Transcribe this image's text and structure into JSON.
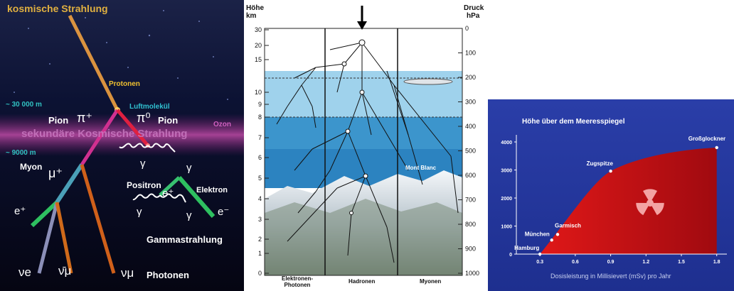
{
  "cosmic": {
    "title": "kosmische Strahlung",
    "protonen": "Protonen",
    "alt_30000": "~ 30 000 m",
    "luftmolekuel": "Luftmolekül",
    "ozon": "Ozon",
    "sekundaer": "sekundäre Kosmische Strahlung",
    "pion_plus": "Pion",
    "pi_plus_sym": "π⁺",
    "pi_zero_sym": "π⁰",
    "pion_zero": "Pion",
    "alt_9000": "~ 9000 m",
    "myon": "Myon",
    "mu_plus": "μ⁺",
    "gamma1": "γ",
    "gamma2": "γ",
    "gamma3": "γ",
    "gamma4": "γ",
    "positron": "Positron",
    "elektron": "Elektron",
    "e_plus1": "e⁺",
    "e_minus": "e⁻",
    "e_plus2": "e⁺",
    "gammastrahlung": "Gammastrahlung",
    "nu_e": "νe",
    "nu_mu_bar": "ν̄μ",
    "nu_mu": "νμ",
    "photonen": "Photonen"
  },
  "shower": {
    "hoehe_label": "Höhe",
    "km_label": "km",
    "druck_label": "Druck",
    "hpa_label": "hPa",
    "km_ticks": [
      "30",
      "20",
      "15",
      "10",
      "9",
      "8",
      "7",
      "6",
      "5",
      "4",
      "3",
      "2",
      "1",
      "0"
    ],
    "hpa_ticks": [
      "0",
      "100",
      "200",
      "300",
      "400",
      "500",
      "600",
      "700",
      "800",
      "900",
      "1000"
    ],
    "mont_blanc": "Mont Blanc",
    "col1": "Elektronen-Photonen",
    "col2": "Hadronen",
    "col3": "Myonen",
    "colors": {
      "sky_band": "#7ec3e6",
      "deep_band": "#3c95cc",
      "mountain": "#e8eef4"
    }
  },
  "dose": {
    "title": "Höhe über dem Meeresspiegel",
    "xlabel": "Dosisleistung in Millisievert (mSv) pro Jahr",
    "colors": {
      "background": "#2a3ea8",
      "fill": "#d01010",
      "symbol": "#f3a3a3"
    }
  },
  "chart_data": {
    "type": "area",
    "title": "Höhe über dem Meeresspiegel",
    "xlabel": "Dosisleistung in Millisievert (mSv) pro Jahr",
    "ylabel": "",
    "xticks": [
      0.3,
      0.6,
      0.9,
      1.2,
      1.5,
      1.8
    ],
    "yticks": [
      0,
      1000,
      2000,
      3000,
      4000
    ],
    "xlim": [
      0.1,
      1.85
    ],
    "ylim": [
      0,
      4000
    ],
    "points": [
      {
        "name": "Hamburg",
        "x": 0.3,
        "y": 0
      },
      {
        "name": "München",
        "x": 0.4,
        "y": 500
      },
      {
        "name": "Garmisch",
        "x": 0.45,
        "y": 700
      },
      {
        "name": "Zugspitze",
        "x": 0.9,
        "y": 2960
      },
      {
        "name": "Großglockner",
        "x": 1.8,
        "y": 3800
      }
    ]
  }
}
